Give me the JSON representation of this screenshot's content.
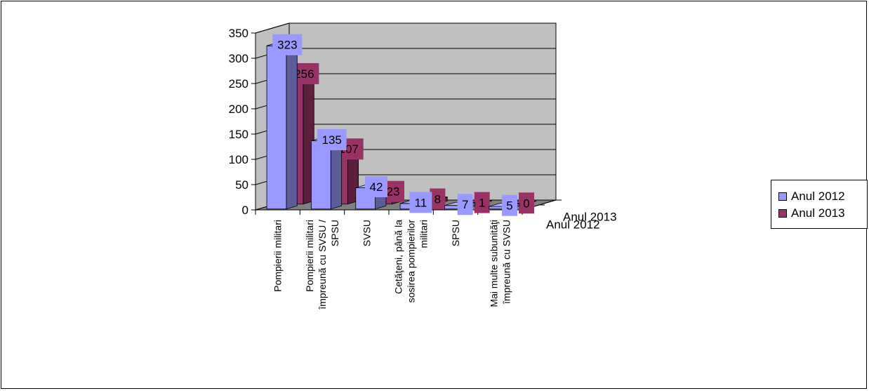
{
  "chart_data": {
    "type": "bar",
    "categories": [
      "Pompierii militari",
      "Pompierii militari împreună cu SVSU / SPSU",
      "SVSU",
      "Cetăţeni, până la sosirea pompierilor militari",
      "SPSU",
      "Mai multe subunităţi împreună cu SVSU"
    ],
    "series": [
      {
        "name": "Anul 2012",
        "values": [
          323,
          135,
          42,
          11,
          7,
          5
        ],
        "color": "#9999ff",
        "depth_label": "Anul 2012"
      },
      {
        "name": "Anul 2013",
        "values": [
          256,
          107,
          23,
          8,
          1,
          0
        ],
        "color": "#993366",
        "depth_label": "Anul 2013"
      }
    ],
    "y_ticks": [
      "0",
      "50",
      "100",
      "150",
      "200",
      "250",
      "300",
      "350"
    ],
    "ylim": [
      0,
      350
    ],
    "grid": true,
    "legend_position": "right",
    "wall_color": "#c0c0c0",
    "floor_color": "#808080"
  }
}
